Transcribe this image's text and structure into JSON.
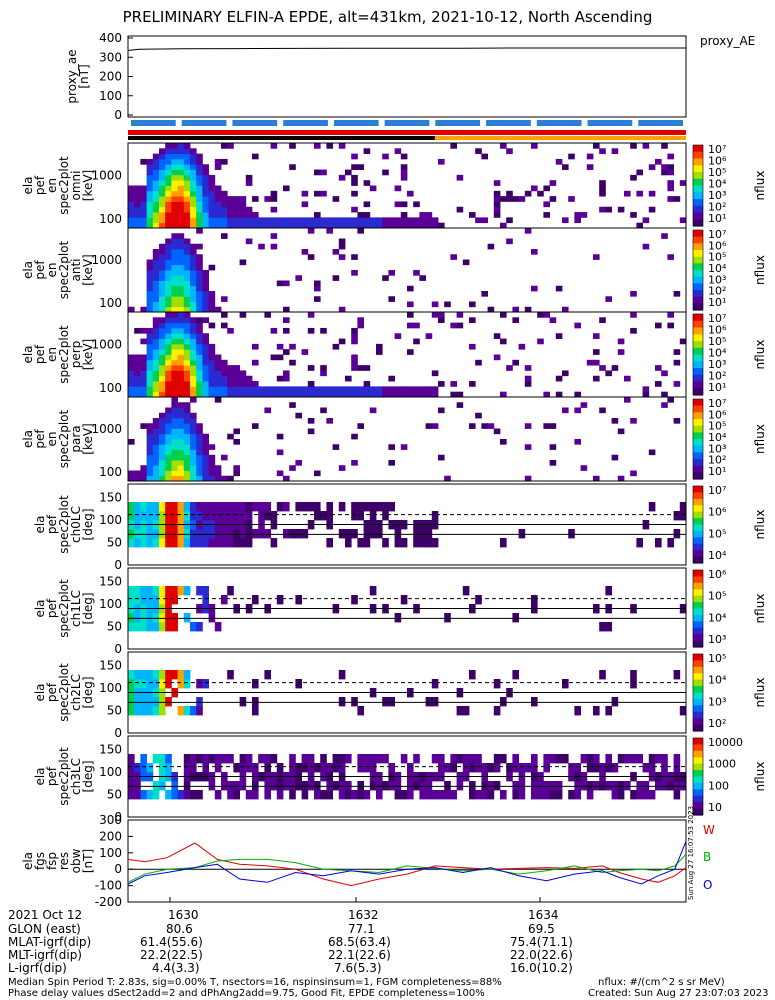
{
  "title": "PRELIMINARY ELFIN-A EPDE, alt=431km, 2021-10-12, North Ascending",
  "ae_tag": "proxy_AE",
  "chart_data": [
    {
      "type": "line",
      "name": "proxy_ae",
      "ylabel": [
        "proxy_ae",
        "[nT]"
      ],
      "ylim": [
        0,
        400
      ],
      "yticks": [
        "400",
        "300",
        "200",
        "100",
        "0"
      ],
      "x": [
        0,
        0.02,
        0.1,
        0.2,
        0.3,
        0.4,
        0.5,
        0.6,
        0.7,
        0.8,
        0.9,
        1.0
      ],
      "values": [
        335,
        342,
        344,
        345,
        346,
        347,
        347,
        347,
        348,
        348,
        348,
        348
      ]
    },
    {
      "type": "heatmap",
      "name": "energy spectrogram 1",
      "ylabel": [
        "ela",
        "pef",
        "en",
        "spec2plot",
        "omni",
        "[keV]"
      ],
      "yticks": [
        "1000",
        "100"
      ],
      "zlabel": "nflux",
      "colorbar_ticks": [
        "10⁷",
        "10⁶",
        "10⁵",
        "10⁴",
        "10³",
        "10²",
        "10¹"
      ]
    },
    {
      "type": "heatmap",
      "name": "energy spectrogram 2",
      "ylabel": [
        "ela",
        "pef",
        "en",
        "spec2plot",
        "anti",
        "[keV]"
      ],
      "yticks": [
        "1000",
        "100"
      ],
      "zlabel": "nflux",
      "colorbar_ticks": [
        "10⁷",
        "10⁶",
        "10⁵",
        "10⁴",
        "10³",
        "10²",
        "10¹"
      ]
    },
    {
      "type": "heatmap",
      "name": "energy spectrogram 3",
      "ylabel": [
        "ela",
        "pef",
        "en",
        "spec2plot",
        "perp",
        "[keV]"
      ],
      "yticks": [
        "1000",
        "100"
      ],
      "zlabel": "nflux",
      "colorbar_ticks": [
        "10⁷",
        "10⁶",
        "10⁵",
        "10⁴",
        "10³",
        "10²",
        "10¹"
      ]
    },
    {
      "type": "heatmap",
      "name": "energy spectrogram 4",
      "ylabel": [
        "ela",
        "pef",
        "en",
        "spec2plot",
        "para",
        "[keV]"
      ],
      "yticks": [
        "1000",
        "100"
      ],
      "zlabel": "nflux",
      "colorbar_ticks": [
        "10⁷",
        "10⁶",
        "10⁵",
        "10⁴",
        "10³",
        "10²",
        "10¹"
      ]
    },
    {
      "type": "heatmap",
      "name": "pitch-angle spectrogram ch0",
      "ylabel": [
        "ela",
        "pef",
        "spec2plot",
        "ch0LC",
        "[deg]"
      ],
      "ylim": [
        0,
        180
      ],
      "yticks": [
        "150",
        "100",
        "50",
        "0"
      ],
      "zlabel": "nflux",
      "colorbar_ticks": [
        "10⁷",
        "10⁶",
        "10⁵",
        "10⁴"
      ]
    },
    {
      "type": "heatmap",
      "name": "pitch-angle spectrogram ch1",
      "ylabel": [
        "ela",
        "pef",
        "spec2plot",
        "ch1LC",
        "[deg]"
      ],
      "ylim": [
        0,
        180
      ],
      "yticks": [
        "150",
        "100",
        "50",
        "0"
      ],
      "zlabel": "nflux",
      "colorbar_ticks": [
        "10⁶",
        "10⁵",
        "10⁴",
        "10³"
      ]
    },
    {
      "type": "heatmap",
      "name": "pitch-angle spectrogram ch2",
      "ylabel": [
        "ela",
        "pef",
        "spec2plot",
        "ch2LC",
        "[deg]"
      ],
      "ylim": [
        0,
        180
      ],
      "yticks": [
        "150",
        "100",
        "50",
        "0"
      ],
      "zlabel": "nflux",
      "colorbar_ticks": [
        "10⁵",
        "10⁴",
        "10³",
        "10²"
      ]
    },
    {
      "type": "heatmap",
      "name": "pitch-angle spectrogram ch3",
      "ylabel": [
        "ela",
        "pef",
        "spec2plot",
        "ch3LC",
        "[deg]"
      ],
      "ylim": [
        0,
        180
      ],
      "yticks": [
        "150",
        "100",
        "50",
        "0"
      ],
      "zlabel": "nflux",
      "colorbar_ticks": [
        "10000",
        "1000",
        "100",
        "10"
      ]
    },
    {
      "type": "line",
      "name": "fgs residual",
      "ylabel": [
        "ela",
        "fgs",
        "fsp",
        "res",
        "obw",
        "[nT]"
      ],
      "ylim": [
        -200,
        300
      ],
      "yticks": [
        "300",
        "200",
        "100",
        "0",
        "-100",
        "-200"
      ],
      "x": [
        0,
        0.03,
        0.07,
        0.12,
        0.16,
        0.2,
        0.25,
        0.3,
        0.35,
        0.4,
        0.45,
        0.5,
        0.55,
        0.6,
        0.65,
        0.7,
        0.75,
        0.8,
        0.85,
        0.88,
        0.92,
        0.95,
        0.98,
        1.0
      ],
      "series": [
        {
          "name": "W",
          "color": "#e00000",
          "values": [
            60,
            45,
            70,
            160,
            60,
            30,
            20,
            0,
            -60,
            -100,
            -60,
            -30,
            20,
            10,
            0,
            5,
            10,
            5,
            20,
            -20,
            -60,
            -80,
            -40,
            10
          ]
        },
        {
          "name": "B",
          "color": "#00b000",
          "values": [
            -80,
            -30,
            0,
            10,
            50,
            60,
            60,
            40,
            0,
            -10,
            -20,
            20,
            5,
            -10,
            0,
            -30,
            -10,
            20,
            -20,
            -10,
            0,
            -10,
            20,
            90
          ]
        },
        {
          "name": "O",
          "color": "#0000e0",
          "values": [
            -90,
            -40,
            -20,
            10,
            30,
            -60,
            -80,
            -20,
            -40,
            -10,
            -30,
            0,
            10,
            -20,
            10,
            -40,
            -70,
            -30,
            -10,
            -50,
            -90,
            -40,
            0,
            170
          ]
        }
      ]
    }
  ],
  "stamp": "Sun Aug 27 16:07:53 2023",
  "xaxis": {
    "rows": [
      {
        "label": "2021 Oct 12",
        "values": [
          "1630",
          "1632",
          "1634"
        ]
      },
      {
        "label": "GLON (east)",
        "values": [
          "80.6",
          "77.1",
          "69.5"
        ]
      },
      {
        "label": "MLAT-igrf(dip)",
        "values": [
          "61.4(55.6)",
          "68.5(63.4)",
          "75.4(71.1)"
        ]
      },
      {
        "label": "MLT-igrf(dip)",
        "values": [
          "22.2(22.5)",
          "22.1(22.6)",
          "22.0(22.6)"
        ]
      },
      {
        "label": "L-igrf(dip)",
        "values": [
          "4.4(3.3)",
          "7.6(5.3)",
          "16.0(10.2)"
        ]
      }
    ]
  },
  "footer": {
    "line1": "Median Spin Period T: 2.83s, sig=0.00% T, nsectors=16, nspinsinsum=1, FGM completeness=88%",
    "line2": "Phase delay values dSect2add=2 and dPhAng2add=9.75, Good Fit, EPDE completeness=100%",
    "right1": "nflux: #/(cm^2 s sr MeV)",
    "right2": "Created: Sun Aug 27 23:07:03 2023"
  }
}
